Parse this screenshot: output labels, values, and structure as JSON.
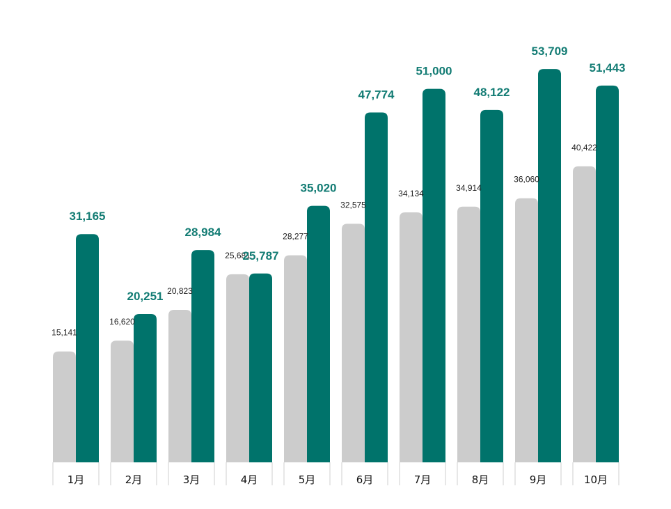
{
  "chart_data": {
    "type": "bar",
    "title": "",
    "xlabel": "",
    "ylabel": "",
    "ylim": [
      0,
      56000
    ],
    "grid": false,
    "legend": "none",
    "categories": [
      "1月",
      "2月",
      "3月",
      "4月",
      "5月",
      "6月",
      "7月",
      "8月",
      "9月",
      "10月"
    ],
    "series": [
      {
        "color": "#cccccc",
        "values": [
          15141,
          16620,
          20823,
          25681,
          28277,
          32575,
          34134,
          34914,
          36060,
          40422
        ],
        "labels": [
          "15,141",
          "16,620",
          "20,823",
          "25,681",
          "28,277",
          "32,575",
          "34,134",
          "34,914",
          "36,060",
          "40,422"
        ]
      },
      {
        "color": "#00736b",
        "values": [
          31165,
          20251,
          28984,
          25787,
          35020,
          47774,
          51000,
          48122,
          53709,
          51443
        ],
        "labels": [
          "31,165",
          "20,251",
          "28,984",
          "25,787",
          "35,020",
          "47,774",
          "51,000",
          "48,122",
          "53,709",
          "51,443"
        ]
      }
    ]
  },
  "colors": {
    "label_accent": "#137c74",
    "axis_line": "#cfcfcf"
  }
}
